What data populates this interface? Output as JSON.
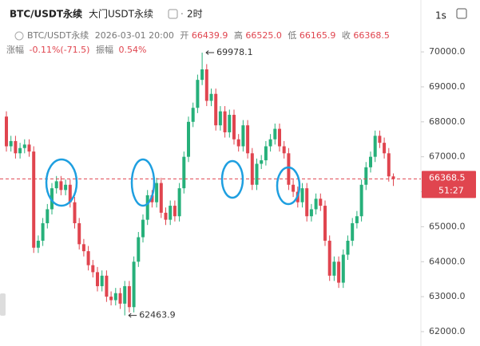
{
  "header": {
    "symbol": "BTC/USDT永续",
    "exchange": "大门USDT永续",
    "interval": "2时",
    "refresh": "1s",
    "ohlc": {
      "symbol": "BTC/USDT永续",
      "time": "2026-03-01 20:00",
      "open_label": "开",
      "open": "66439.9",
      "high_label": "高",
      "high": "66525.0",
      "low_label": "低",
      "low": "66165.9",
      "close_label": "收",
      "close": "66368.5"
    },
    "change_label": "涨幅",
    "change": "-0.11%(-71.5)",
    "amplitude_label": "振幅",
    "amplitude": "0.54%"
  },
  "chart_data": {
    "type": "candlestick",
    "up_color": "#26b07a",
    "down_color": "#e0454f",
    "open": [
      68150,
      67300,
      67450,
      67100,
      67250,
      67350,
      67150,
      64400,
      64600,
      65100,
      65500,
      66100,
      66300,
      66050,
      66200,
      65700,
      65100,
      64500,
      64300,
      63900,
      63700,
      63300,
      63600,
      63000,
      62900,
      63100,
      62800,
      63300,
      62700,
      64000,
      64700,
      65200,
      65900,
      65700,
      66250,
      65400,
      65200,
      65600,
      65300,
      66100,
      67000,
      68000,
      68400,
      69200,
      69500,
      68600,
      68800,
      67900,
      68300,
      67700,
      68200,
      67500,
      67300,
      67900,
      67100,
      66200,
      66800,
      66900,
      67300,
      67500,
      67800,
      67300,
      67100,
      66200,
      66000,
      65700,
      66100,
      65300,
      65500,
      65800,
      65600,
      64600,
      63600,
      64000,
      63400,
      64200,
      64600,
      65100,
      65300,
      66200,
      66700,
      67000,
      67600,
      67400,
      67100,
      66439.9
    ],
    "high": [
      68300,
      67600,
      67600,
      67400,
      67500,
      67500,
      67300,
      64750,
      65250,
      65650,
      66250,
      66450,
      66450,
      66350,
      66350,
      65850,
      65250,
      64650,
      64450,
      64050,
      63850,
      63750,
      63750,
      63150,
      63250,
      63250,
      63450,
      63450,
      64150,
      64850,
      65350,
      66050,
      66050,
      66400,
      66400,
      65550,
      65750,
      65750,
      66250,
      67150,
      68150,
      68550,
      69350,
      69978.1,
      69650,
      68950,
      68950,
      68450,
      68450,
      68350,
      68350,
      67650,
      68050,
      68050,
      67250,
      66950,
      67050,
      67450,
      67650,
      67950,
      67950,
      67450,
      67250,
      66350,
      66150,
      66250,
      66250,
      65650,
      65950,
      65950,
      65750,
      64750,
      64150,
      64150,
      64350,
      64750,
      65250,
      65450,
      66350,
      66850,
      67150,
      67750,
      67750,
      67550,
      67250,
      66525
    ],
    "low": [
      67150,
      67150,
      66950,
      66950,
      67100,
      67000,
      64250,
      64250,
      64450,
      64950,
      65350,
      65950,
      65900,
      65900,
      65550,
      64950,
      64350,
      64150,
      63750,
      63550,
      63150,
      63150,
      62850,
      62750,
      62750,
      62650,
      62463.9,
      62550,
      62550,
      63850,
      64550,
      65050,
      65550,
      65550,
      65250,
      65050,
      65050,
      65150,
      65150,
      65950,
      66850,
      67850,
      68250,
      69050,
      68450,
      68450,
      67750,
      67750,
      67550,
      67550,
      67350,
      67150,
      67150,
      66950,
      66050,
      66050,
      66650,
      66750,
      67150,
      67350,
      67150,
      66950,
      66050,
      65850,
      65550,
      65550,
      65150,
      65150,
      65350,
      65450,
      64450,
      63450,
      63450,
      63250,
      63250,
      64050,
      64450,
      64950,
      65150,
      66050,
      66550,
      66850,
      67250,
      66950,
      66289.9,
      66165.9
    ],
    "close": [
      67300,
      67450,
      67100,
      67250,
      67350,
      67150,
      64400,
      64600,
      65100,
      65500,
      66100,
      66300,
      66050,
      66200,
      65700,
      65100,
      64500,
      64300,
      63900,
      63700,
      63300,
      63600,
      63000,
      62900,
      63100,
      62800,
      63300,
      62700,
      64000,
      64700,
      65200,
      65900,
      65700,
      66250,
      65400,
      65200,
      65600,
      65300,
      66100,
      67000,
      68000,
      68400,
      69200,
      69500,
      68600,
      68800,
      67900,
      68300,
      67700,
      68200,
      67500,
      67300,
      67900,
      67100,
      66200,
      66800,
      66900,
      67300,
      67500,
      67800,
      67300,
      67100,
      66200,
      66000,
      65700,
      66100,
      65300,
      65500,
      65800,
      65600,
      64600,
      63600,
      64000,
      63400,
      64200,
      64600,
      65100,
      65300,
      66200,
      66700,
      67000,
      67600,
      67400,
      67100,
      66439.9,
      66368.5
    ],
    "ylim": [
      61589,
      71484
    ],
    "yticks": [
      {
        "value": 62000,
        "label": "62000.0"
      },
      {
        "value": 63000,
        "label": "63000.0"
      },
      {
        "value": 64000,
        "label": "64000.0"
      },
      {
        "value": 65000,
        "label": "65000.0"
      },
      {
        "value": 66000,
        "label": "66000.0"
      },
      {
        "value": 67000,
        "label": "67000.0"
      },
      {
        "value": 68000,
        "label": "68000.0"
      },
      {
        "value": 69000,
        "label": "69000.0"
      },
      {
        "value": 70000,
        "label": "70000.0"
      }
    ],
    "max_label": 69978.1,
    "min_label": 62463.9,
    "last_price": 66368.5,
    "countdown": "51:27"
  }
}
